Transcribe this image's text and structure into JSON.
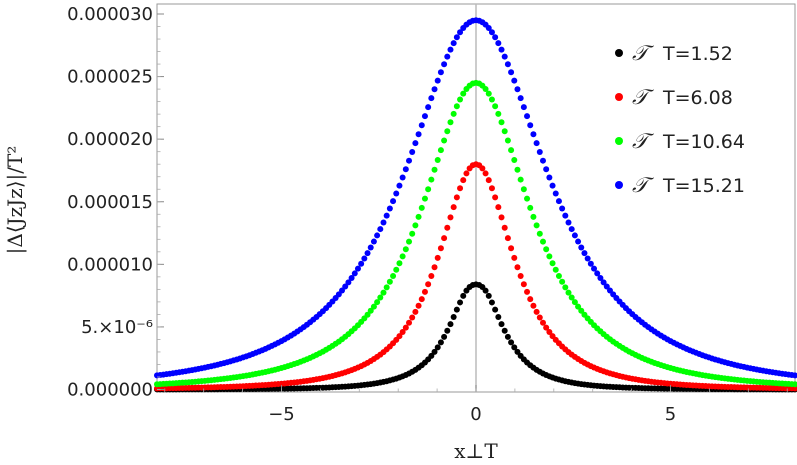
{
  "chart_data": {
    "type": "scatter",
    "xlabel": "x⊥T",
    "ylabel": "|Δ⟨JzJz⟩|/T²",
    "xlim": [
      -8.2,
      8.2
    ],
    "ylim": [
      -2e-07,
      3.08e-05
    ],
    "x_ticks": [
      {
        "value": -5,
        "label": "−5"
      },
      {
        "value": 0,
        "label": "0"
      },
      {
        "value": 5,
        "label": "5"
      }
    ],
    "y_ticks": [
      {
        "value": 0,
        "label": "0.000000"
      },
      {
        "value": 5e-06,
        "label": "5.×10⁻⁶"
      },
      {
        "value": 1e-05,
        "label": "0.000010"
      },
      {
        "value": 1.5e-05,
        "label": "0.000015"
      },
      {
        "value": 2e-05,
        "label": "0.000020"
      },
      {
        "value": 2.5e-05,
        "label": "0.000025"
      },
      {
        "value": 3e-05,
        "label": "0.000030"
      }
    ],
    "grid": false,
    "legend_position": "top-right",
    "legend_symbol": "𝒯",
    "series": [
      {
        "name": "T=1.52",
        "color": "#000000",
        "peak": 8.8e-06,
        "width": 0.85,
        "dip": 4e-07
      },
      {
        "name": "T=6.08",
        "color": "#ff0000",
        "peak": 1.8e-05,
        "width": 1.25,
        "dip": 0
      },
      {
        "name": "T=10.64",
        "color": "#00ff00",
        "peak": 2.45e-05,
        "width": 1.8,
        "dip": 0
      },
      {
        "name": "T=15.21",
        "color": "#0000ff",
        "peak": 2.95e-05,
        "width": 2.35,
        "dip": 0
      }
    ]
  }
}
